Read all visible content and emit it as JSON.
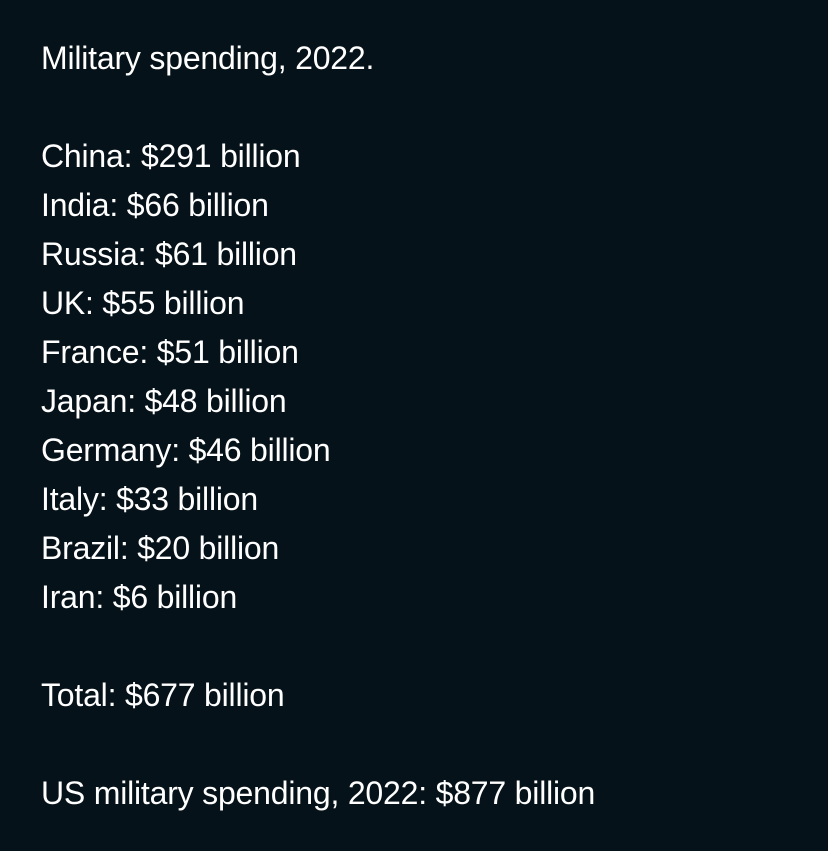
{
  "post": {
    "title": "Military spending, 2022.",
    "countries": [
      {
        "label": "China: $291 billion"
      },
      {
        "label": "India: $66 billion"
      },
      {
        "label": "Russia: $61 billion"
      },
      {
        "label": "UK: $55 billion"
      },
      {
        "label": "France: $51 billion"
      },
      {
        "label": "Japan: $48 billion"
      },
      {
        "label": "Germany: $46 billion"
      },
      {
        "label": "Italy: $33 billion"
      },
      {
        "label": "Brazil: $20 billion"
      },
      {
        "label": "Iran: $6 billion"
      }
    ],
    "total": "Total: $677 billion",
    "us_line": "US military spending, 2022: $877 billion"
  },
  "colors": {
    "background": "#061219",
    "text": "#ffffff"
  }
}
